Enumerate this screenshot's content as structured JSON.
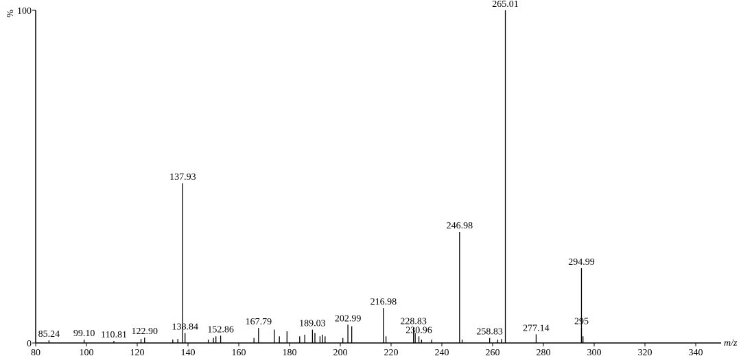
{
  "chart_data": {
    "type": "spectrum",
    "x_label": "m/z",
    "y_label": "%",
    "xlim": [
      80,
      350
    ],
    "ylim": [
      0,
      100
    ],
    "xticks": [
      80,
      100,
      120,
      140,
      160,
      180,
      200,
      220,
      240,
      260,
      280,
      300,
      320,
      340
    ],
    "yticks": [
      0,
      100
    ],
    "color": "#000000",
    "series": [
      {
        "x": [
          85.24,
          99.1,
          110.81,
          122.9,
          137.93,
          138.84,
          152.86,
          167.79,
          189.03,
          202.99,
          216.98,
          228.83,
          230.96,
          246.98,
          258.83,
          265.01,
          277.14,
          294.99,
          295
        ],
        "values": [
          0.8,
          1,
          0.6,
          1.6,
          48,
          3,
          2.2,
          4.5,
          4,
          5.5,
          10.5,
          4.6,
          2,
          33.4,
          1.5,
          100,
          2.6,
          22.5,
          4.6
        ],
        "labels": [
          "85.24",
          "99.10",
          "110.81",
          "122.90",
          "137.93",
          "138.84",
          "152.86",
          "167.79",
          "189.03",
          "202.99",
          "216.98",
          "228.83",
          "230.96",
          "246.98",
          "258.83",
          "265.01",
          "277.14",
          "294.99",
          "295"
        ]
      },
      {
        "x": [
          121.5,
          134,
          136,
          148,
          150,
          151,
          166,
          174,
          176,
          179,
          184,
          186,
          190,
          192,
          193,
          194,
          201,
          204.5,
          218,
          229.5,
          232,
          236,
          248,
          262,
          263.5,
          295.6
        ],
        "values": [
          1.2,
          1,
          1.2,
          1,
          1.5,
          2,
          1.5,
          4,
          2,
          3.5,
          2,
          2.5,
          3,
          2,
          2.5,
          2,
          1.5,
          5,
          2,
          3,
          1,
          1,
          1,
          1,
          1.2,
          2
        ]
      }
    ]
  }
}
